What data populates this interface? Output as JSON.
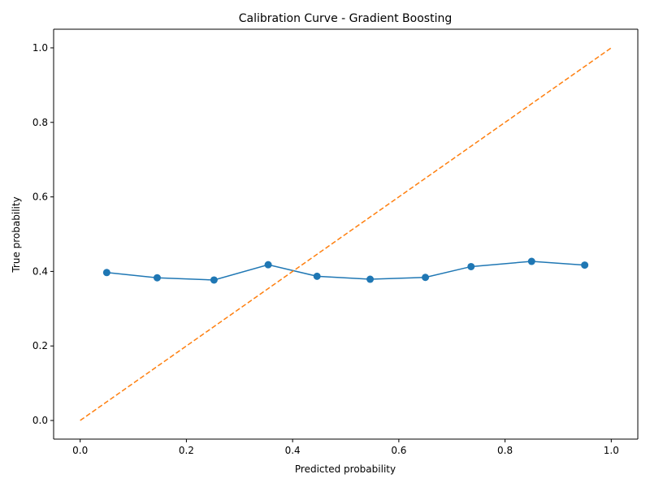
{
  "chart_data": {
    "type": "line",
    "title": "Calibration Curve - Gradient Boosting",
    "xlabel": "Predicted probability",
    "ylabel": "True probability",
    "xlim": [
      -0.05,
      1.05
    ],
    "ylim": [
      -0.05,
      1.05
    ],
    "xticks": [
      0.0,
      0.2,
      0.4,
      0.6,
      0.8,
      1.0
    ],
    "yticks": [
      0.0,
      0.2,
      0.4,
      0.6,
      0.8,
      1.0
    ],
    "xtick_labels": [
      "0.0",
      "0.2",
      "0.4",
      "0.6",
      "0.8",
      "1.0"
    ],
    "ytick_labels": [
      "0.0",
      "0.2",
      "0.4",
      "0.6",
      "0.8",
      "1.0"
    ],
    "grid": false,
    "series": [
      {
        "style": "line-with-markers",
        "color": "#1f77b4",
        "x": [
          0.05,
          0.145,
          0.252,
          0.354,
          0.446,
          0.546,
          0.65,
          0.736,
          0.85,
          0.95
        ],
        "y": [
          0.397,
          0.383,
          0.377,
          0.418,
          0.387,
          0.379,
          0.384,
          0.413,
          0.427,
          0.417
        ]
      },
      {
        "style": "dashed",
        "color": "#ff7f0e",
        "x": [
          0.0,
          1.0
        ],
        "y": [
          0.0,
          1.0
        ]
      }
    ]
  }
}
